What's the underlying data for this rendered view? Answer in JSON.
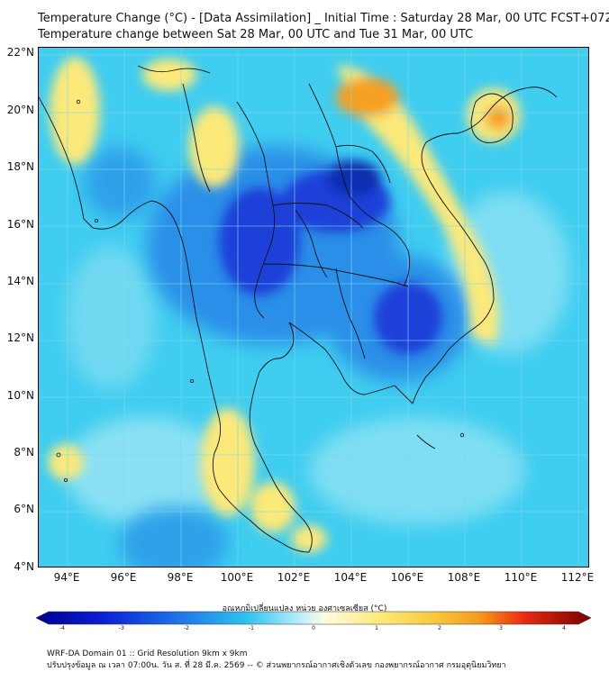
{
  "header": {
    "title_line1": "Temperature Change (°C) - [Data Assimilation] _ Initial Time : Saturday 28 Mar, 00 UTC FCST+072",
    "title_line2": "Temperature change between Sat 28 Mar, 00 UTC and Tue 31 Mar, 00 UTC"
  },
  "map": {
    "lat_labels": [
      "22°N",
      "20°N",
      "18°N",
      "16°N",
      "14°N",
      "12°N",
      "10°N",
      "8°N",
      "6°N",
      "4°N"
    ],
    "lon_labels": [
      "94°E",
      "96°E",
      "98°E",
      "100°E",
      "102°E",
      "104°E",
      "106°E",
      "108°E",
      "110°E",
      "112°E"
    ],
    "background_color": "#3fcdf0",
    "warm_color": "#fbe97a",
    "hot_color": "#f5a020",
    "cold_color": "#1a3fd8",
    "coldest_color": "#0c2fb0"
  },
  "colorbar": {
    "title": "อุณหภูมิเปลี่ยนแปลง หน่วย องศาเซลเซียส (°C)",
    "tick_labels": [
      "-4",
      "-3",
      "-2",
      "-1",
      "0",
      "1",
      "2",
      "3",
      "4"
    ],
    "min": -4,
    "max": 4
  },
  "footer": {
    "line1": "WRF-DA Domain 01 :: Grid Resolution 9km x 9km",
    "line2": "ปรับปรุงข้อมูล ณ เวลา 07:00น. วัน ส. ที่ 28 มี.ค. 2569 -- © ส่วนพยากรณ์อากาศเชิงตัวเลข กองพยากรณ์อากาศ กรมอุตุนิยมวิทยา"
  }
}
